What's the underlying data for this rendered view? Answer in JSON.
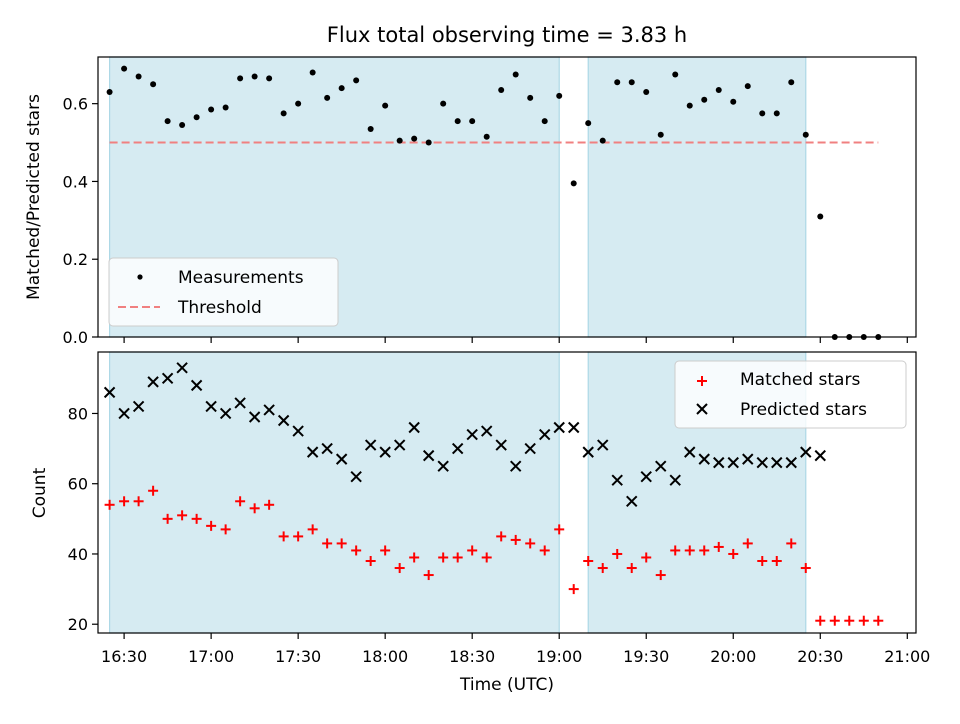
{
  "chart_data": [
    {
      "type": "scatter",
      "title": "Flux total observing time = 3.83 h",
      "xlabel": "",
      "ylabel": "Matched/Predicted stars",
      "ylim": [
        0,
        0.72
      ],
      "yticks": [
        "0.0",
        "0.2",
        "0.4",
        "0.6"
      ],
      "yticks_values": [
        0.0,
        0.2,
        0.4,
        0.6
      ],
      "xlim": [
        "16:21",
        "21:03"
      ],
      "grid": false,
      "legend": {
        "position": "lower-left",
        "entries": [
          "Measurements",
          "Threshold"
        ]
      },
      "shaded_regions": [
        [
          "16:25",
          "19:00"
        ],
        [
          "19:10",
          "20:25"
        ]
      ],
      "threshold": {
        "name": "Threshold",
        "value": 0.5,
        "x_range": [
          "16:25",
          "20:50"
        ],
        "color": "#f08080",
        "style": "dashed"
      },
      "series": [
        {
          "name": "Measurements",
          "color": "#000000",
          "x": [
            "16:25",
            "16:30",
            "16:35",
            "16:40",
            "16:45",
            "16:50",
            "16:55",
            "17:00",
            "17:05",
            "17:10",
            "17:15",
            "17:20",
            "17:25",
            "17:30",
            "17:35",
            "17:40",
            "17:45",
            "17:50",
            "17:55",
            "18:00",
            "18:05",
            "18:10",
            "18:15",
            "18:20",
            "18:25",
            "18:30",
            "18:35",
            "18:40",
            "18:45",
            "18:50",
            "18:55",
            "19:00",
            "19:05",
            "19:10",
            "19:15",
            "19:20",
            "19:25",
            "19:30",
            "19:35",
            "19:40",
            "19:45",
            "19:50",
            "19:55",
            "20:00",
            "20:05",
            "20:10",
            "20:15",
            "20:20",
            "20:25",
            "20:30",
            "20:35",
            "20:40",
            "20:45",
            "20:50"
          ],
          "y": [
            0.63,
            0.69,
            0.67,
            0.65,
            0.555,
            0.545,
            0.565,
            0.585,
            0.59,
            0.665,
            0.67,
            0.665,
            0.575,
            0.6,
            0.68,
            0.615,
            0.64,
            0.66,
            0.535,
            0.595,
            0.505,
            0.51,
            0.5,
            0.6,
            0.555,
            0.555,
            0.515,
            0.635,
            0.675,
            0.615,
            0.555,
            0.62,
            0.395,
            0.55,
            0.505,
            0.655,
            0.655,
            0.63,
            0.52,
            0.675,
            0.595,
            0.61,
            0.635,
            0.605,
            0.645,
            0.575,
            0.575,
            0.655,
            0.52,
            0.31,
            0.0,
            0.0,
            0.0,
            0.0
          ]
        }
      ]
    },
    {
      "type": "scatter",
      "title": "",
      "xlabel": "Time (UTC)",
      "ylabel": "Count",
      "ylim": [
        17.5,
        97.5
      ],
      "yticks": [
        "20",
        "40",
        "60",
        "80"
      ],
      "yticks_values": [
        20,
        40,
        60,
        80
      ],
      "xlim": [
        "16:21",
        "21:03"
      ],
      "xticks": [
        "16:30",
        "17:00",
        "17:30",
        "18:00",
        "18:30",
        "19:00",
        "19:30",
        "20:00",
        "20:30",
        "21:00"
      ],
      "grid": false,
      "legend": {
        "position": "top-right",
        "entries": [
          "Matched stars",
          "Predicted stars"
        ]
      },
      "shaded_regions": [
        [
          "16:25",
          "19:00"
        ],
        [
          "19:10",
          "20:25"
        ]
      ],
      "series": [
        {
          "name": "Matched stars",
          "marker": "plus",
          "color": "#ff0000",
          "x": [
            "16:25",
            "16:30",
            "16:35",
            "16:40",
            "16:45",
            "16:50",
            "16:55",
            "17:00",
            "17:05",
            "17:10",
            "17:15",
            "17:20",
            "17:25",
            "17:30",
            "17:35",
            "17:40",
            "17:45",
            "17:50",
            "17:55",
            "18:00",
            "18:05",
            "18:10",
            "18:15",
            "18:20",
            "18:25",
            "18:30",
            "18:35",
            "18:40",
            "18:45",
            "18:50",
            "18:55",
            "19:00",
            "19:05",
            "19:10",
            "19:15",
            "19:20",
            "19:25",
            "19:30",
            "19:35",
            "19:40",
            "19:45",
            "19:50",
            "19:55",
            "20:00",
            "20:05",
            "20:10",
            "20:15",
            "20:20",
            "20:25",
            "20:30",
            "20:35",
            "20:40",
            "20:45",
            "20:50"
          ],
          "y": [
            54,
            55,
            55,
            58,
            50,
            51,
            50,
            48,
            47,
            55,
            53,
            54,
            45,
            45,
            47,
            43,
            43,
            41,
            38,
            41,
            36,
            39,
            34,
            39,
            39,
            41,
            39,
            45,
            44,
            43,
            41,
            47,
            30,
            38,
            36,
            40,
            36,
            39,
            34,
            41,
            41,
            41,
            42,
            40,
            43,
            38,
            38,
            43,
            36,
            21,
            21,
            21,
            21,
            21
          ]
        },
        {
          "name": "Predicted stars",
          "marker": "x",
          "color": "#000000",
          "x": [
            "16:25",
            "16:30",
            "16:35",
            "16:40",
            "16:45",
            "16:50",
            "16:55",
            "17:00",
            "17:05",
            "17:10",
            "17:15",
            "17:20",
            "17:25",
            "17:30",
            "17:35",
            "17:40",
            "17:45",
            "17:50",
            "17:55",
            "18:00",
            "18:05",
            "18:10",
            "18:15",
            "18:20",
            "18:25",
            "18:30",
            "18:35",
            "18:40",
            "18:45",
            "18:50",
            "18:55",
            "19:00",
            "19:05",
            "19:10",
            "19:15",
            "19:20",
            "19:25",
            "19:30",
            "19:35",
            "19:40",
            "19:45",
            "19:50",
            "19:55",
            "20:00",
            "20:05",
            "20:10",
            "20:15",
            "20:20",
            "20:25",
            "20:30"
          ],
          "y": [
            86,
            80,
            82,
            89,
            90,
            93,
            88,
            82,
            80,
            83,
            79,
            81,
            78,
            75,
            69,
            70,
            67,
            62,
            71,
            69,
            71,
            76,
            68,
            65,
            70,
            74,
            75,
            71,
            65,
            70,
            74,
            76,
            76,
            69,
            71,
            61,
            55,
            62,
            65,
            61,
            69,
            67,
            66,
            66,
            67,
            66,
            66,
            66,
            69,
            68
          ]
        }
      ]
    }
  ]
}
